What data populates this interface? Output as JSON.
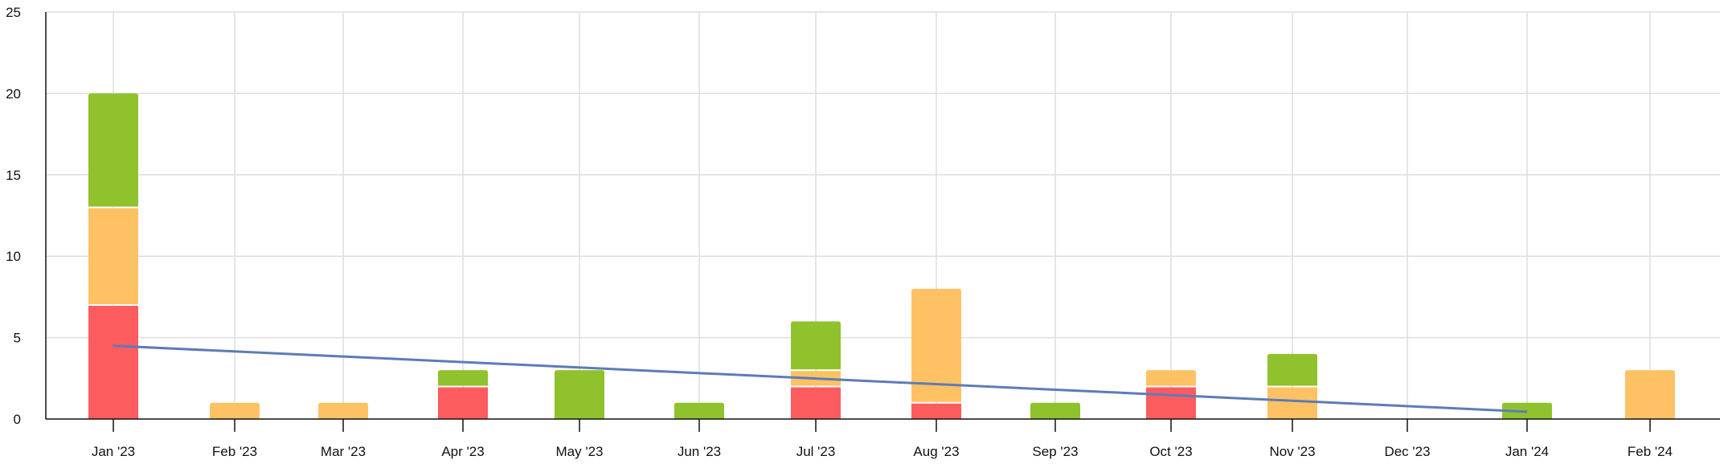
{
  "chart_data": {
    "type": "bar",
    "stacked": true,
    "categories": [
      "Jan '23",
      "Feb '23",
      "Mar '23",
      "Apr '23",
      "May '23",
      "Jun '23",
      "Jul '23",
      "Aug '23",
      "Sep '23",
      "Oct '23",
      "Nov '23",
      "Dec '23",
      "Jan '24",
      "Feb '24"
    ],
    "ylim": [
      0,
      25
    ],
    "yticks": [
      "0",
      "5",
      "10",
      "15",
      "20",
      "25"
    ],
    "grid": true,
    "series": [
      {
        "color": "#fd5c5f",
        "values": [
          7,
          0,
          0,
          2,
          0,
          0,
          2,
          1,
          0,
          2,
          0,
          0,
          0,
          0
        ]
      },
      {
        "color": "#fec265",
        "values": [
          6,
          1,
          1,
          0,
          0,
          0,
          1,
          7,
          0,
          1,
          2,
          0,
          0,
          3
        ]
      },
      {
        "color": "#8fc22d",
        "values": [
          7,
          0,
          0,
          1,
          3,
          1,
          3,
          0,
          1,
          0,
          2,
          0,
          1,
          0
        ]
      }
    ],
    "trendline": {
      "color": "#5d7bb7",
      "from": {
        "category": "Jan '23",
        "value": 4.5
      },
      "to": {
        "category": "Jan '24",
        "value": 0.45
      }
    }
  }
}
